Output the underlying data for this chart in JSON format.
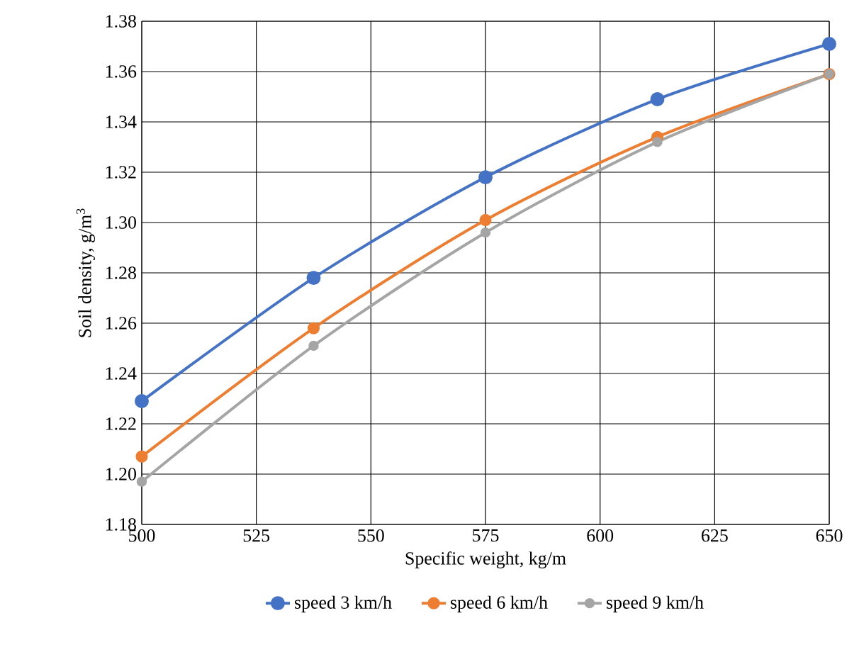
{
  "chart_data": {
    "type": "line",
    "xlabel": "Specific weight, kg/m",
    "ylabel": "Soil density, g/m$^{3}$",
    "x": [
      500,
      537.5,
      575,
      612.5,
      650
    ],
    "series": [
      {
        "name": "speed 3 km/h",
        "color": "#4472c4",
        "values": [
          1.229,
          1.278,
          1.318,
          1.349,
          1.371
        ]
      },
      {
        "name": "speed 6 km/h",
        "color": "#ed7d31",
        "values": [
          1.207,
          1.258,
          1.301,
          1.334,
          1.359
        ]
      },
      {
        "name": "speed 9 km/h",
        "color": "#a5a5a5",
        "values": [
          1.197,
          1.251,
          1.296,
          1.332,
          1.359
        ]
      }
    ],
    "xlim": [
      500,
      650
    ],
    "xticks": [
      500,
      525,
      550,
      575,
      600,
      625,
      650
    ],
    "ylim": [
      1.18,
      1.38
    ],
    "yticks": [
      {
        "value": 1.18,
        "label": "1.18"
      },
      {
        "value": 1.2,
        "label": "1.20"
      },
      {
        "value": 1.22,
        "label": "1.22"
      },
      {
        "value": 1.24,
        "label": "1.24"
      },
      {
        "value": 1.26,
        "label": "1.26"
      },
      {
        "value": 1.28,
        "label": "1.28"
      },
      {
        "value": 1.3,
        "label": "1.30"
      },
      {
        "value": 1.32,
        "label": "1.32"
      },
      {
        "value": 1.34,
        "label": "1.34"
      },
      {
        "value": 1.36,
        "label": "1.36"
      },
      {
        "value": 1.38,
        "label": "1.38"
      }
    ],
    "grid": true,
    "legend": "bottom",
    "marker": "circle",
    "line_style": "solid"
  }
}
